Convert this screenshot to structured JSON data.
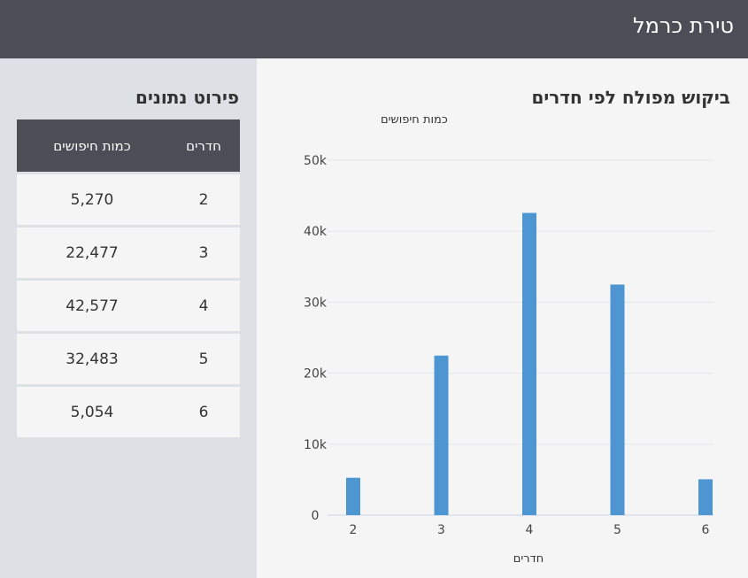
{
  "header": {
    "title": "טירת כרמל"
  },
  "chart_panel": {
    "title": "ביקוש מפולח לפי חדרים"
  },
  "side_panel": {
    "title": "פירוט נתונים",
    "columns": [
      "חדרים",
      "כמות חיפושים"
    ],
    "rows": [
      [
        "2",
        "5,270"
      ],
      [
        "3",
        "22,477"
      ],
      [
        "4",
        "42,577"
      ],
      [
        "5",
        "32,483"
      ],
      [
        "6",
        "5,054"
      ]
    ]
  },
  "colors": {
    "bar": "#4e96d1",
    "header_bg": "#4d4d57",
    "panel_bg": "#f5f5f5",
    "side_bg": "#dde0e5"
  },
  "chart_data": {
    "type": "bar",
    "categories": [
      "2",
      "3",
      "4",
      "5",
      "6"
    ],
    "values": [
      5270,
      22477,
      42577,
      32483,
      5054
    ],
    "xlabel": "חדרים",
    "ylabel": "כמות חיפושים",
    "ylim": [
      0,
      50000
    ],
    "yticks": [
      {
        "value": 0,
        "label": "0"
      },
      {
        "value": 10000,
        "label": "10k"
      },
      {
        "value": 20000,
        "label": "20k"
      },
      {
        "value": 30000,
        "label": "30k"
      },
      {
        "value": 40000,
        "label": "40k"
      },
      {
        "value": 50000,
        "label": "50k"
      }
    ],
    "grid": true,
    "legend": "none"
  }
}
